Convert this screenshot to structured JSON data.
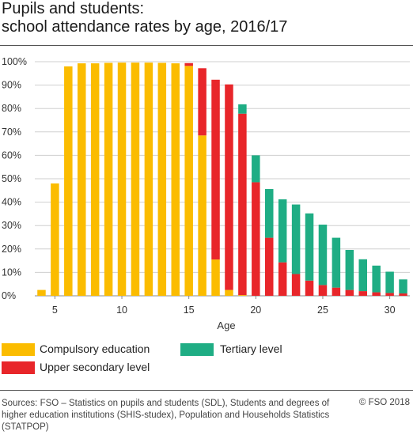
{
  "title_line1": "Pupils and students:",
  "title_line2": "school attendance rates by age, 2016/17",
  "source_text": "Sources: FSO – Statistics on pupils and students (SDL), Students and degrees of higher education institutions (SHIS-studex), Population and Households Statistics (STATPOP)",
  "copyright": "© FSO 2018",
  "chart_data": {
    "type": "bar",
    "stacked": true,
    "xlabel": "Age",
    "ylabel": "",
    "ylim": [
      0,
      100
    ],
    "ytick_labels": [
      "0%",
      "10%",
      "20%",
      "30%",
      "40%",
      "50%",
      "60%",
      "70%",
      "80%",
      "90%",
      "100%"
    ],
    "xtick_labels": [
      "5",
      "10",
      "15",
      "20",
      "25",
      "30"
    ],
    "xtick_values": [
      5,
      10,
      15,
      20,
      25,
      30
    ],
    "grid": true,
    "legend_position": "bottom",
    "categories": [
      4,
      5,
      6,
      7,
      8,
      9,
      10,
      11,
      12,
      13,
      14,
      15,
      16,
      17,
      18,
      19,
      20,
      21,
      22,
      23,
      24,
      25,
      26,
      27,
      28,
      29,
      30,
      31
    ],
    "series": [
      {
        "name": "Compulsory education",
        "color": "#fbbc00",
        "values": [
          2.5,
          48,
          98,
          99.3,
          99.3,
          99.5,
          99.6,
          99.6,
          99.6,
          99.5,
          99.3,
          98.2,
          68.5,
          15.5,
          2.5,
          0.3,
          0,
          0,
          0,
          0,
          0,
          0,
          0,
          0,
          0,
          0,
          0,
          0
        ]
      },
      {
        "name": "Upper secondary level",
        "color": "#e8262a",
        "values": [
          0,
          0,
          0,
          0,
          0,
          0,
          0,
          0,
          0,
          0,
          0,
          1.2,
          28.7,
          76.8,
          87.8,
          77.5,
          48.5,
          24.8,
          14.3,
          9.3,
          6.5,
          4.6,
          3.5,
          2.5,
          2,
          1.5,
          1.2,
          1
        ]
      },
      {
        "name": "Tertiary level",
        "color": "#1fad84",
        "values": [
          0,
          0,
          0,
          0,
          0,
          0,
          0,
          0,
          0,
          0,
          0,
          0,
          0,
          0,
          0,
          4,
          11.5,
          20.8,
          26.9,
          29.7,
          28.7,
          25.8,
          21.3,
          17.1,
          13.6,
          11.4,
          9.1,
          6
        ]
      }
    ]
  }
}
